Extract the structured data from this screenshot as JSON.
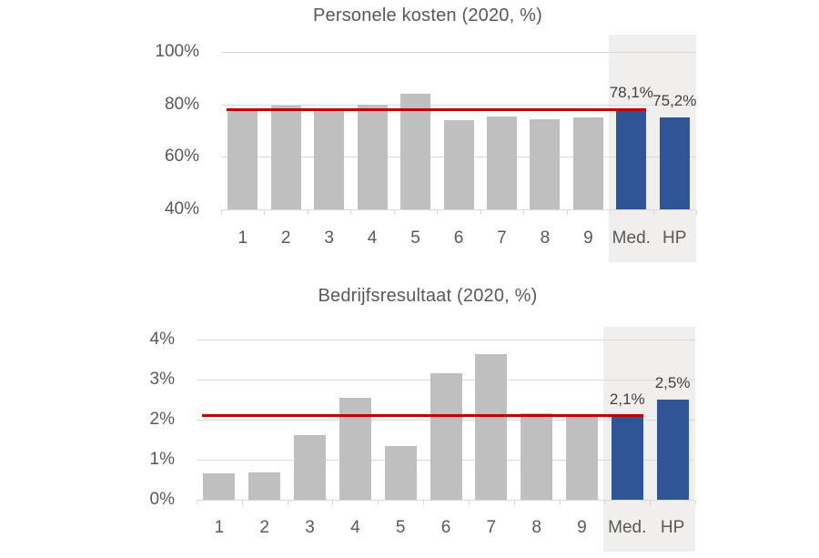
{
  "figure": {
    "background": "#FFFFFF"
  },
  "colors": {
    "bar_default": "#BFBFBF",
    "bar_highlight": "#2F5597",
    "reference_line": "#C00000",
    "highlight_band": "#F0EFEE",
    "gridline": "#D9D9D9",
    "axis_text": "#595959",
    "title_text": "#595959",
    "data_label_text": "#404040"
  },
  "chart_data": [
    {
      "type": "bar",
      "title": "Personele kosten (2020, %)",
      "categories": [
        "1",
        "2",
        "3",
        "4",
        "5",
        "6",
        "7",
        "8",
        "9",
        "Med.",
        "HP"
      ],
      "values": [
        78.4,
        79.6,
        77.9,
        79.8,
        83.9,
        74.0,
        75.5,
        74.2,
        75.1,
        78.1,
        75.2
      ],
      "ylim": [
        40,
        100
      ],
      "yticks": [
        {
          "value": 100,
          "label": "100%"
        },
        {
          "value": 80,
          "label": "80%"
        },
        {
          "value": 60,
          "label": "60%"
        },
        {
          "value": 40,
          "label": "40%"
        }
      ],
      "grid": true,
      "legend": null,
      "reference_line": {
        "value": 78.1
      },
      "highlight_start_index": 9,
      "data_labels": [
        {
          "index": 9,
          "text": "78,1%"
        },
        {
          "index": 10,
          "text": "75,2%"
        }
      ]
    },
    {
      "type": "bar",
      "title": "Bedrijfsresultaat (2020, %)",
      "categories": [
        "1",
        "2",
        "3",
        "4",
        "5",
        "6",
        "7",
        "8",
        "9",
        "Med.",
        "HP"
      ],
      "values": [
        0.65,
        0.68,
        1.62,
        2.55,
        1.33,
        3.15,
        3.63,
        2.17,
        2.06,
        2.1,
        2.5
      ],
      "ylim": [
        0,
        4
      ],
      "yticks": [
        {
          "value": 4,
          "label": "4%"
        },
        {
          "value": 3,
          "label": "3%"
        },
        {
          "value": 2,
          "label": "2%"
        },
        {
          "value": 1,
          "label": "1%"
        },
        {
          "value": 0,
          "label": "0%"
        }
      ],
      "grid": true,
      "legend": null,
      "reference_line": {
        "value": 2.1
      },
      "highlight_start_index": 9,
      "data_labels": [
        {
          "index": 9,
          "text": "2,1%"
        },
        {
          "index": 10,
          "text": "2,5%"
        }
      ]
    }
  ]
}
